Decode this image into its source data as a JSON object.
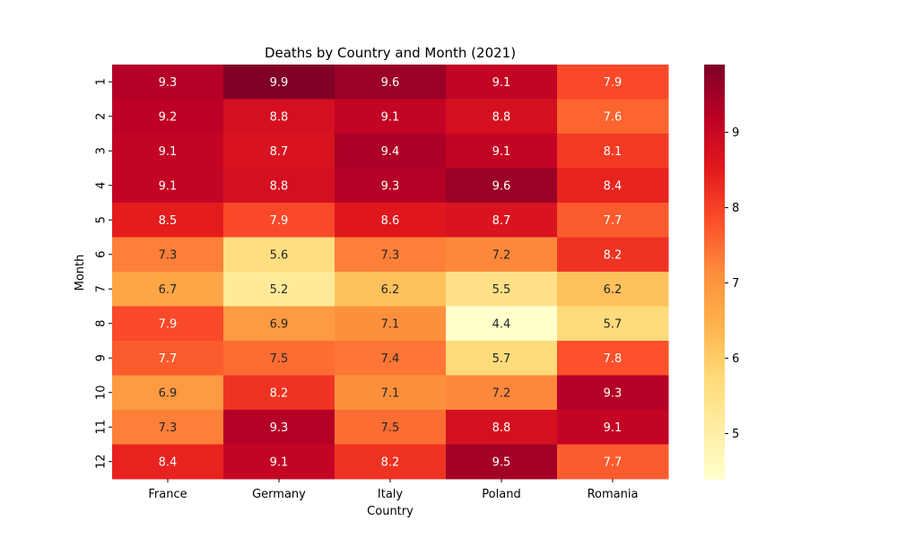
{
  "chart_data": {
    "type": "heatmap",
    "title": "Deaths by Country and Month (2021)",
    "xlabel": "Country",
    "ylabel": "Month",
    "x": [
      "France",
      "Germany",
      "Italy",
      "Poland",
      "Romania"
    ],
    "y": [
      "1",
      "2",
      "3",
      "4",
      "5",
      "6",
      "7",
      "8",
      "9",
      "10",
      "11",
      "12"
    ],
    "values": [
      [
        9.3,
        9.9,
        9.6,
        9.1,
        7.9
      ],
      [
        9.2,
        8.8,
        9.1,
        8.8,
        7.6
      ],
      [
        9.1,
        8.7,
        9.4,
        9.1,
        8.1
      ],
      [
        9.1,
        8.8,
        9.3,
        9.6,
        8.4
      ],
      [
        8.5,
        7.9,
        8.6,
        8.7,
        7.7
      ],
      [
        7.3,
        5.6,
        7.3,
        7.2,
        8.2
      ],
      [
        6.7,
        5.2,
        6.2,
        5.5,
        6.2
      ],
      [
        7.9,
        6.9,
        7.1,
        4.4,
        5.7
      ],
      [
        7.7,
        7.5,
        7.4,
        5.7,
        7.8
      ],
      [
        6.9,
        8.2,
        7.1,
        7.2,
        9.3
      ],
      [
        7.3,
        9.3,
        7.5,
        8.8,
        9.1
      ],
      [
        8.4,
        9.1,
        8.2,
        9.5,
        7.7
      ]
    ],
    "colormap": "YlOrRd",
    "vmin": 4.4,
    "vmax": 9.9,
    "colorbar_ticks": [
      "5",
      "6",
      "7",
      "8",
      "9"
    ],
    "annotations": true
  }
}
